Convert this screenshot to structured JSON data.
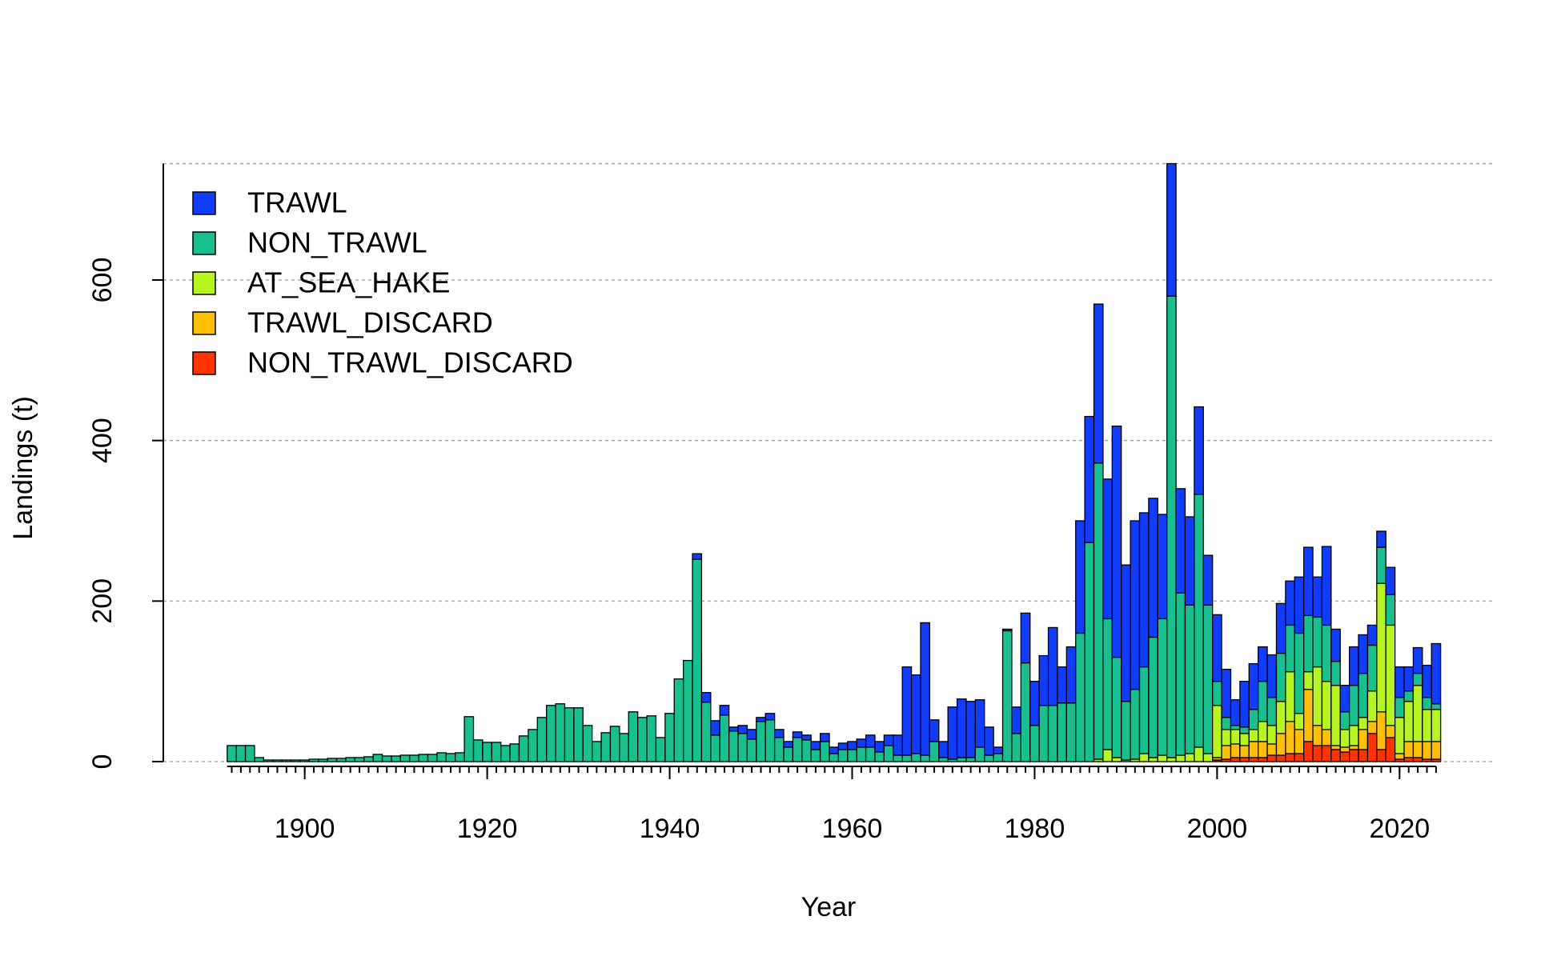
{
  "chart_data": {
    "type": "stacked_bar",
    "xlabel": "Year",
    "ylabel": "Landings (t)",
    "x": [
      1892,
      1893,
      1894,
      1895,
      1896,
      1897,
      1898,
      1899,
      1900,
      1901,
      1902,
      1903,
      1904,
      1905,
      1906,
      1907,
      1908,
      1909,
      1910,
      1911,
      1912,
      1913,
      1914,
      1915,
      1916,
      1917,
      1918,
      1919,
      1920,
      1921,
      1922,
      1923,
      1924,
      1925,
      1926,
      1927,
      1928,
      1929,
      1930,
      1931,
      1932,
      1933,
      1934,
      1935,
      1936,
      1937,
      1938,
      1939,
      1940,
      1941,
      1942,
      1943,
      1944,
      1945,
      1946,
      1947,
      1948,
      1949,
      1950,
      1951,
      1952,
      1953,
      1954,
      1955,
      1956,
      1957,
      1958,
      1959,
      1960,
      1961,
      1962,
      1963,
      1964,
      1965,
      1966,
      1967,
      1968,
      1969,
      1970,
      1971,
      1972,
      1973,
      1974,
      1975,
      1976,
      1977,
      1978,
      1979,
      1980,
      1981,
      1982,
      1983,
      1984,
      1985,
      1986,
      1987,
      1988,
      1989,
      1990,
      1991,
      1992,
      1993,
      1994,
      1995,
      1996,
      1997,
      1998,
      1999,
      2000,
      2001,
      2002,
      2003,
      2004,
      2005,
      2006,
      2007,
      2008,
      2009,
      2010,
      2011,
      2012,
      2013,
      2014,
      2015,
      2016,
      2017,
      2018,
      2019,
      2020,
      2021,
      2022,
      2023,
      2024
    ],
    "series": [
      {
        "name": "TRAWL",
        "color": "#0f3cff",
        "values": [
          0,
          0,
          0,
          0,
          0,
          0,
          0,
          0,
          0,
          0,
          0,
          0,
          0,
          0,
          0,
          0,
          0,
          0,
          0,
          0,
          0,
          0,
          0,
          0,
          0,
          0,
          0,
          0,
          0,
          0,
          0,
          0,
          0,
          0,
          0,
          0,
          0,
          0,
          0,
          0,
          0,
          0,
          0,
          0,
          0,
          0,
          0,
          0,
          0,
          0,
          0,
          7,
          12,
          18,
          12,
          5,
          10,
          12,
          5,
          8,
          10,
          7,
          7,
          6,
          10,
          10,
          8,
          8,
          10,
          10,
          15,
          13,
          13,
          25,
          110,
          98,
          165,
          27,
          20,
          65,
          73,
          70,
          59,
          35,
          8,
          2,
          33,
          62,
          55,
          62,
          97,
          45,
          70,
          140,
          157,
          198,
          174,
          288,
          170,
          210,
          192,
          173,
          130,
          165,
          130,
          110,
          109,
          62,
          83,
          60,
          32,
          57,
          57,
          43,
          53,
          62,
          55,
          70,
          85,
          50,
          98,
          40,
          33,
          48,
          48,
          25,
          20,
          34,
          38,
          30,
          32,
          40,
          75
        ]
      },
      {
        "name": "NON_TRAWL",
        "color": "#16c08f",
        "values": [
          20,
          20,
          20,
          5,
          2,
          2,
          2,
          2,
          2,
          3,
          3,
          4,
          4,
          5,
          5,
          6,
          9,
          7,
          7,
          8,
          8,
          9,
          9,
          11,
          10,
          11,
          56,
          27,
          24,
          24,
          20,
          22,
          32,
          40,
          55,
          70,
          72,
          67,
          67,
          45,
          25,
          36,
          44,
          35,
          62,
          55,
          57,
          30,
          60,
          103,
          126,
          252,
          74,
          33,
          58,
          38,
          35,
          28,
          50,
          52,
          30,
          18,
          30,
          27,
          15,
          25,
          10,
          15,
          15,
          18,
          18,
          12,
          20,
          8,
          8,
          10,
          8,
          25,
          5,
          3,
          5,
          5,
          18,
          8,
          10,
          163,
          35,
          123,
          45,
          70,
          70,
          73,
          73,
          160,
          273,
          369,
          163,
          125,
          73,
          87,
          108,
          150,
          170,
          575,
          202,
          185,
          315,
          185,
          30,
          15,
          5,
          8,
          25,
          50,
          35,
          60,
          58,
          100,
          70,
          62,
          70,
          30,
          22,
          50,
          55,
          57,
          45,
          38,
          25,
          13,
          15,
          15,
          7
        ]
      },
      {
        "name": "AT_SEA_HAKE",
        "color": "#b6f51e",
        "values": [
          0,
          0,
          0,
          0,
          0,
          0,
          0,
          0,
          0,
          0,
          0,
          0,
          0,
          0,
          0,
          0,
          0,
          0,
          0,
          0,
          0,
          0,
          0,
          0,
          0,
          0,
          0,
          0,
          0,
          0,
          0,
          0,
          0,
          0,
          0,
          0,
          0,
          0,
          0,
          0,
          0,
          0,
          0,
          0,
          0,
          0,
          0,
          0,
          0,
          0,
          0,
          0,
          0,
          0,
          0,
          0,
          0,
          0,
          0,
          0,
          0,
          0,
          0,
          0,
          0,
          0,
          0,
          0,
          0,
          0,
          0,
          0,
          0,
          0,
          0,
          0,
          0,
          0,
          0,
          0,
          0,
          0,
          0,
          0,
          0,
          0,
          0,
          0,
          0,
          0,
          0,
          0,
          0,
          0,
          0,
          3,
          15,
          5,
          2,
          3,
          10,
          5,
          8,
          5,
          8,
          10,
          18,
          10,
          65,
          20,
          18,
          15,
          15,
          25,
          23,
          40,
          62,
          20,
          22,
          73,
          60,
          75,
          22,
          25,
          15,
          38,
          160,
          125,
          45,
          50,
          70,
          40,
          40
        ]
      },
      {
        "name": "TRAWL_DISCARD",
        "color": "#ffc000",
        "values": [
          0,
          0,
          0,
          0,
          0,
          0,
          0,
          0,
          0,
          0,
          0,
          0,
          0,
          0,
          0,
          0,
          0,
          0,
          0,
          0,
          0,
          0,
          0,
          0,
          0,
          0,
          0,
          0,
          0,
          0,
          0,
          0,
          0,
          0,
          0,
          0,
          0,
          0,
          0,
          0,
          0,
          0,
          0,
          0,
          0,
          0,
          0,
          0,
          0,
          0,
          0,
          0,
          0,
          0,
          0,
          0,
          0,
          0,
          0,
          0,
          0,
          0,
          0,
          0,
          0,
          0,
          0,
          0,
          0,
          0,
          0,
          0,
          0,
          0,
          0,
          0,
          0,
          0,
          0,
          0,
          0,
          0,
          0,
          0,
          0,
          0,
          0,
          0,
          0,
          0,
          0,
          0,
          0,
          0,
          0,
          0,
          0,
          0,
          0,
          0,
          0,
          0,
          0,
          0,
          0,
          0,
          0,
          0,
          3,
          17,
          17,
          15,
          20,
          20,
          14,
          27,
          40,
          30,
          65,
          25,
          20,
          5,
          6,
          5,
          25,
          15,
          47,
          15,
          7,
          20,
          20,
          22,
          22
        ]
      },
      {
        "name": "NON_TRAWL_DISCARD",
        "color": "#ff3300",
        "values": [
          0,
          0,
          0,
          0,
          0,
          0,
          0,
          0,
          0,
          0,
          0,
          0,
          0,
          0,
          0,
          0,
          0,
          0,
          0,
          0,
          0,
          0,
          0,
          0,
          0,
          0,
          0,
          0,
          0,
          0,
          0,
          0,
          0,
          0,
          0,
          0,
          0,
          0,
          0,
          0,
          0,
          0,
          0,
          0,
          0,
          0,
          0,
          0,
          0,
          0,
          0,
          0,
          0,
          0,
          0,
          0,
          0,
          0,
          0,
          0,
          0,
          0,
          0,
          0,
          0,
          0,
          0,
          0,
          0,
          0,
          0,
          0,
          0,
          0,
          0,
          0,
          0,
          0,
          0,
          0,
          0,
          0,
          0,
          0,
          0,
          0,
          0,
          0,
          0,
          0,
          0,
          0,
          0,
          0,
          0,
          0,
          0,
          0,
          0,
          0,
          0,
          0,
          0,
          0,
          0,
          0,
          0,
          0,
          2,
          3,
          5,
          5,
          5,
          5,
          8,
          8,
          10,
          10,
          25,
          20,
          20,
          15,
          12,
          15,
          15,
          35,
          15,
          30,
          3,
          5,
          5,
          3,
          3
        ]
      }
    ],
    "xlim": [
      1884.5,
      2030.5
    ],
    "xticks": [
      1900,
      1920,
      1940,
      1960,
      1980,
      2000,
      2020
    ],
    "ylim": [
      0,
      745
    ],
    "yticks": [
      0,
      200,
      400,
      600
    ],
    "grid": true,
    "legend": "topleft"
  }
}
